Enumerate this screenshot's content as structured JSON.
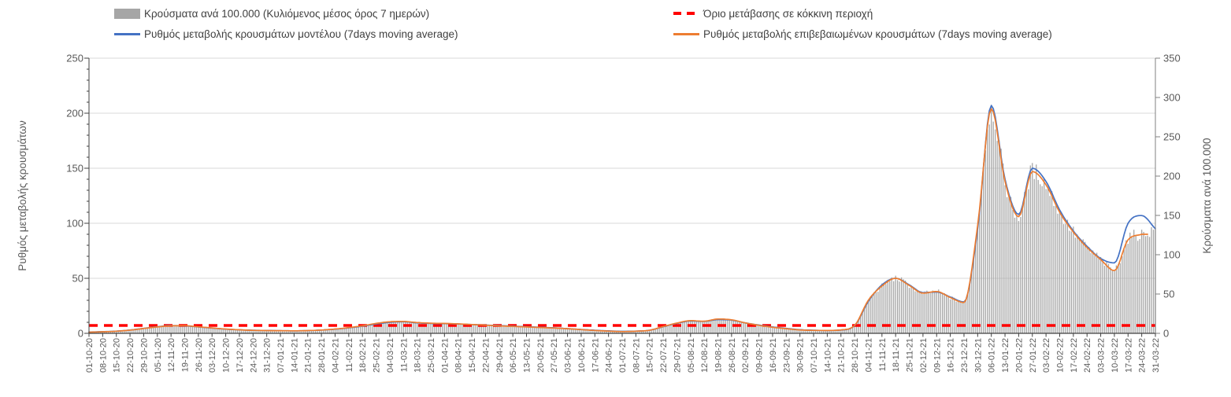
{
  "legend": [
    {
      "label": "Κρούσματα ανά 100.000 (Κυλιόμενος μέσος όρος 7 ημερών)",
      "type": "bar-swatch",
      "color": "#A6A6A6"
    },
    {
      "label": "Ρυθμός μεταβολής κρουσμάτων μοντέλου (7days moving average)",
      "type": "line",
      "color": "#4472C4"
    },
    {
      "label": "Όριο μετάβασης σε κόκκινη περιοχή",
      "type": "dashed-line",
      "color": "#FF0000"
    },
    {
      "label": "Ρυθμός μεταβολής επιβεβαιωμένων κρουσμάτων (7days moving average)",
      "type": "line",
      "color": "#ED7D31"
    }
  ],
  "chart_data": {
    "type": "combo bar+line, dual y-axis",
    "grid": "horizontal gridlines at left-axis intervals of 50",
    "legend_position": "top",
    "x_axis": {
      "tick_frequency": "weekly",
      "bar_granularity": "daily",
      "start": "01-10-20",
      "end": "31-03-22",
      "label_rotation_deg": -90
    },
    "left_axis": {
      "title": "Ρυθμός μεταβολής κρουσμάτων",
      "min": 0,
      "max": 250,
      "tick_interval": 50,
      "ticks": [
        "0",
        "50",
        "100",
        "150",
        "200",
        "250"
      ]
    },
    "right_axis": {
      "title": "Κρούσματα ανά 100.000",
      "min": 0,
      "max": 350,
      "tick_interval": 50,
      "ticks": [
        "0",
        "50",
        "100",
        "150",
        "200",
        "250",
        "300",
        "350"
      ]
    },
    "threshold": {
      "label": "Όριο μετάβασης σε κόκκινη περιοχή",
      "value_right_axis": 10,
      "color": "#FF0000"
    },
    "x_tick_labels": [
      "01-10-20",
      "08-10-20",
      "15-10-20",
      "22-10-20",
      "29-10-20",
      "05-11-20",
      "12-11-20",
      "19-11-20",
      "26-11-20",
      "03-12-20",
      "10-12-20",
      "17-12-20",
      "24-12-20",
      "31-12-20",
      "07-01-21",
      "14-01-21",
      "21-01-21",
      "28-01-21",
      "04-02-21",
      "11-02-21",
      "18-02-21",
      "25-02-21",
      "04-03-21",
      "11-03-21",
      "18-03-21",
      "25-03-21",
      "01-04-21",
      "08-04-21",
      "15-04-21",
      "22-04-21",
      "29-04-21",
      "06-05-21",
      "13-05-21",
      "20-05-21",
      "27-05-21",
      "03-06-21",
      "10-06-21",
      "17-06-21",
      "24-06-21",
      "01-07-21",
      "08-07-21",
      "15-07-21",
      "22-07-21",
      "29-07-21",
      "05-08-21",
      "12-08-21",
      "19-08-21",
      "26-08-21",
      "02-09-21",
      "09-09-21",
      "16-09-21",
      "23-09-21",
      "30-09-21",
      "07-10-21",
      "14-10-21",
      "21-10-21",
      "28-10-21",
      "04-11-21",
      "11-11-21",
      "18-11-21",
      "25-11-21",
      "02-12-21",
      "09-12-21",
      "16-12-21",
      "23-12-21",
      "30-12-21",
      "06-01-22",
      "13-01-22",
      "20-01-22",
      "27-01-22",
      "03-02-22",
      "10-02-22",
      "17-02-22",
      "24-02-22",
      "03-03-22",
      "10-03-22",
      "17-03-22",
      "24-03-22",
      "31-03-22"
    ],
    "series": [
      {
        "name": "Κρούσματα ανά 100.000 (Κυλιόμενος μέσος όρος 7 ημερών)",
        "axis": "right",
        "type": "bar",
        "color": "#A6A6A6",
        "values": [
          1.5,
          2,
          3,
          4,
          6,
          8,
          10,
          10,
          8.5,
          7,
          5.5,
          4.5,
          4,
          3.5,
          3.5,
          3,
          3.5,
          4,
          5.5,
          7,
          9.5,
          12.5,
          15,
          15,
          14,
          13,
          12.5,
          12,
          11,
          10.5,
          9.5,
          9,
          8,
          7.5,
          7,
          6,
          5,
          3.5,
          3,
          2.5,
          2.5,
          4,
          8.5,
          13,
          16,
          15.5,
          18,
          17,
          13.5,
          10,
          8,
          6,
          4.5,
          4,
          3.5,
          4.5,
          10,
          42,
          60,
          70,
          61,
          51,
          53,
          45.5,
          39,
          137,
          286,
          193,
          148,
          206,
          189,
          154,
          129,
          109,
          94,
          81,
          120,
          126,
          132
        ]
      },
      {
        "name": "Ρυθμός μεταβολής κρουσμάτων μοντέλου (7days moving average)",
        "axis": "left",
        "type": "line",
        "color": "#4472C4",
        "values": [
          1.2,
          1.5,
          2,
          3,
          4.5,
          6,
          7,
          6.8,
          5.8,
          4.8,
          3.8,
          3.2,
          2.8,
          2.6,
          2.4,
          2.3,
          2.5,
          3,
          3.8,
          5,
          6.5,
          8.5,
          10,
          10.5,
          9.5,
          9,
          8.8,
          8.5,
          8,
          7.5,
          7,
          6.5,
          6,
          5.5,
          5,
          4.3,
          3.5,
          2.8,
          2.2,
          1.8,
          2,
          2.8,
          6,
          9,
          11.2,
          10.8,
          12.5,
          12,
          9.5,
          7.5,
          5.8,
          4.5,
          3.3,
          2.8,
          2.6,
          3,
          7,
          29,
          44,
          50,
          44,
          37,
          37.5,
          33,
          28.5,
          95,
          207,
          140,
          108,
          150,
          138,
          112,
          93,
          79,
          68,
          64,
          100,
          107,
          95
        ]
      },
      {
        "name": "Ρυθμός μεταβολής επιβεβαιωμένων κρουσμάτων (7days moving average)",
        "axis": "left",
        "type": "line",
        "color": "#ED7D31",
        "extend_flat_days": 3,
        "values": [
          1,
          1.4,
          1.9,
          2.9,
          4.4,
          5.8,
          6.8,
          6.9,
          5.9,
          4.9,
          3.9,
          3.2,
          2.7,
          2.5,
          2.4,
          2.3,
          2.5,
          3,
          3.9,
          5.2,
          6.8,
          9,
          10.5,
          10.8,
          9.8,
          9.2,
          9,
          8.6,
          8,
          7.4,
          6.8,
          6.3,
          5.8,
          5.3,
          4.8,
          4.2,
          3.4,
          2.6,
          2,
          1.6,
          1.9,
          2.8,
          6.2,
          9.3,
          11.5,
          11,
          13,
          12.3,
          9.5,
          7.3,
          5.5,
          4.2,
          3.1,
          2.7,
          2.6,
          3.1,
          7.2,
          30,
          43,
          50,
          43.5,
          36.5,
          38,
          32.5,
          28,
          98,
          204,
          138,
          106,
          147,
          135,
          110,
          92,
          78,
          67,
          57,
          85,
          90,
          null
        ]
      }
    ],
    "colors": {
      "bars": "#A6A6A6",
      "model_line": "#4472C4",
      "confirmed_line": "#ED7D31",
      "threshold": "#FF0000",
      "gridline": "#D9D9D9",
      "axis": "#595959",
      "labels": "#595959"
    }
  }
}
